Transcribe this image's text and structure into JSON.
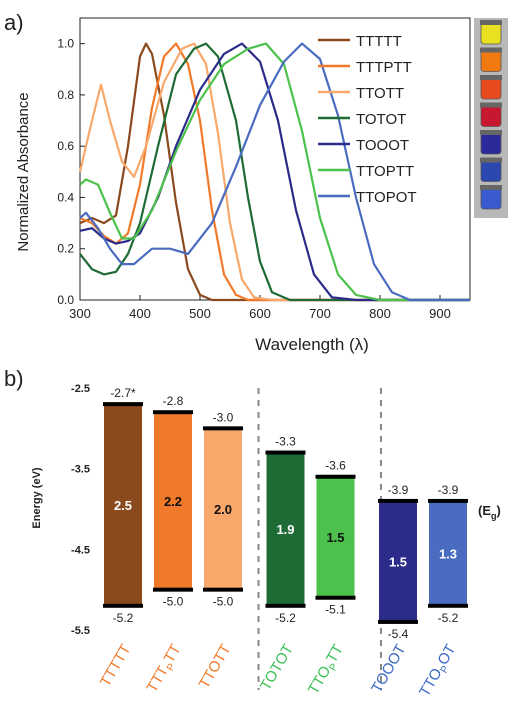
{
  "chart_data": [
    {
      "panel_label": "a)",
      "type": "line",
      "xlabel": "Wavelength (λ)",
      "ylabel": "Normalized Absorbance",
      "xlim": [
        300,
        950
      ],
      "ylim": [
        0,
        1.1
      ],
      "xticks": [
        "300",
        "400",
        "500",
        "600",
        "700",
        "800",
        "900"
      ],
      "yticks": [
        "0.0",
        "0.2",
        "0.4",
        "0.6",
        "0.8",
        "1.0"
      ],
      "legend_position": "top-right",
      "series": [
        {
          "name": "TTTTT",
          "color": "#8a4a1e",
          "points": [
            [
              300,
              0.3
            ],
            [
              320,
              0.32
            ],
            [
              340,
              0.3
            ],
            [
              360,
              0.33
            ],
            [
              380,
              0.6
            ],
            [
              400,
              0.95
            ],
            [
              410,
              1.0
            ],
            [
              420,
              0.96
            ],
            [
              440,
              0.72
            ],
            [
              460,
              0.38
            ],
            [
              480,
              0.12
            ],
            [
              500,
              0.02
            ],
            [
              520,
              0.0
            ],
            [
              950,
              0.0
            ]
          ]
        },
        {
          "name": "TTTPTT",
          "color": "#f07a2a",
          "points": [
            [
              300,
              0.32
            ],
            [
              320,
              0.3
            ],
            [
              340,
              0.25
            ],
            [
              360,
              0.22
            ],
            [
              380,
              0.26
            ],
            [
              400,
              0.45
            ],
            [
              420,
              0.75
            ],
            [
              440,
              0.95
            ],
            [
              460,
              1.0
            ],
            [
              480,
              0.92
            ],
            [
              500,
              0.7
            ],
            [
              520,
              0.35
            ],
            [
              540,
              0.1
            ],
            [
              560,
              0.02
            ],
            [
              580,
              0.0
            ],
            [
              950,
              0.0
            ]
          ]
        },
        {
          "name": "TTOTT",
          "color": "#f8a86a",
          "points": [
            [
              300,
              0.5
            ],
            [
              320,
              0.7
            ],
            [
              335,
              0.84
            ],
            [
              350,
              0.7
            ],
            [
              370,
              0.54
            ],
            [
              390,
              0.48
            ],
            [
              410,
              0.6
            ],
            [
              440,
              0.85
            ],
            [
              470,
              0.98
            ],
            [
              490,
              1.0
            ],
            [
              510,
              0.92
            ],
            [
              530,
              0.65
            ],
            [
              550,
              0.3
            ],
            [
              570,
              0.08
            ],
            [
              590,
              0.01
            ],
            [
              620,
              0.0
            ],
            [
              950,
              0.0
            ]
          ]
        },
        {
          "name": "TOTOT",
          "color": "#1f6b36",
          "points": [
            [
              300,
              0.18
            ],
            [
              320,
              0.12
            ],
            [
              340,
              0.1
            ],
            [
              360,
              0.11
            ],
            [
              380,
              0.18
            ],
            [
              400,
              0.3
            ],
            [
              430,
              0.6
            ],
            [
              460,
              0.88
            ],
            [
              490,
              0.98
            ],
            [
              510,
              1.0
            ],
            [
              530,
              0.95
            ],
            [
              560,
              0.7
            ],
            [
              580,
              0.4
            ],
            [
              600,
              0.15
            ],
            [
              620,
              0.03
            ],
            [
              650,
              0.0
            ],
            [
              950,
              0.0
            ]
          ]
        },
        {
          "name": "TOOOT",
          "color": "#2b2b8a",
          "points": [
            [
              300,
              0.27
            ],
            [
              320,
              0.28
            ],
            [
              340,
              0.24
            ],
            [
              360,
              0.22
            ],
            [
              380,
              0.23
            ],
            [
              400,
              0.26
            ],
            [
              430,
              0.4
            ],
            [
              460,
              0.6
            ],
            [
              500,
              0.82
            ],
            [
              540,
              0.96
            ],
            [
              570,
              1.0
            ],
            [
              600,
              0.93
            ],
            [
              630,
              0.7
            ],
            [
              660,
              0.35
            ],
            [
              690,
              0.1
            ],
            [
              720,
              0.01
            ],
            [
              760,
              0.0
            ],
            [
              950,
              0.0
            ]
          ]
        },
        {
          "name": "TTOPTT",
          "color": "#4cc24c",
          "points": [
            [
              300,
              0.45
            ],
            [
              310,
              0.47
            ],
            [
              330,
              0.45
            ],
            [
              350,
              0.34
            ],
            [
              370,
              0.24
            ],
            [
              390,
              0.24
            ],
            [
              420,
              0.35
            ],
            [
              460,
              0.58
            ],
            [
              500,
              0.78
            ],
            [
              540,
              0.92
            ],
            [
              580,
              0.98
            ],
            [
              610,
              1.0
            ],
            [
              640,
              0.92
            ],
            [
              670,
              0.66
            ],
            [
              700,
              0.32
            ],
            [
              730,
              0.1
            ],
            [
              760,
              0.02
            ],
            [
              800,
              0.0
            ],
            [
              950,
              0.0
            ]
          ]
        },
        {
          "name": "TTOPOT",
          "color": "#4a6cc0",
          "points": [
            [
              300,
              0.32
            ],
            [
              310,
              0.34
            ],
            [
              330,
              0.28
            ],
            [
              350,
              0.2
            ],
            [
              370,
              0.14
            ],
            [
              390,
              0.14
            ],
            [
              420,
              0.2
            ],
            [
              450,
              0.2
            ],
            [
              480,
              0.18
            ],
            [
              520,
              0.3
            ],
            [
              560,
              0.52
            ],
            [
              600,
              0.76
            ],
            [
              640,
              0.93
            ],
            [
              670,
              1.0
            ],
            [
              700,
              0.94
            ],
            [
              730,
              0.72
            ],
            [
              760,
              0.4
            ],
            [
              790,
              0.14
            ],
            [
              820,
              0.03
            ],
            [
              850,
              0.0
            ],
            [
              950,
              0.0
            ]
          ]
        }
      ]
    },
    {
      "panel_label": "b)",
      "type": "bar",
      "ylabel": "Energy (eV)",
      "ylim": [
        -5.5,
        -2.5
      ],
      "yticks": [
        "-2.5",
        "-3.5",
        "-4.5",
        "-5.5"
      ],
      "gap_legend": "(E",
      "gap_legend_sub": "g",
      "gap_legend_close": ")",
      "bars": [
        {
          "name": "TTTTT",
          "label_main": "TTTTT",
          "label_sub": "",
          "label_end": "",
          "lumo": -2.7,
          "homo": -5.2,
          "lumo_label": "-2.7*",
          "homo_label": "-5.2",
          "gap": "2.5",
          "color": "#8a4a1e",
          "label_color": "#f07a2a",
          "gap_color": "#ffffff",
          "x": 0
        },
        {
          "name": "TTTPTT",
          "label_main": "TTT",
          "label_sub": "P",
          "label_end": "TT",
          "lumo": -2.8,
          "homo": -5.0,
          "lumo_label": "-2.8",
          "homo_label": "-5.0",
          "gap": "2.2",
          "color": "#f07a2a",
          "label_color": "#f07a2a",
          "gap_color": "#111111",
          "x": 1
        },
        {
          "name": "TTOTT",
          "label_main": "TTOTT",
          "label_sub": "",
          "label_end": "",
          "lumo": -3.0,
          "homo": -5.0,
          "lumo_label": "-3.0",
          "homo_label": "-5.0",
          "gap": "2.0",
          "color": "#f8a86a",
          "label_color": "#f07a2a",
          "gap_color": "#111111",
          "x": 2
        },
        {
          "name": "TOTOT",
          "label_main": "TOTOT",
          "label_sub": "",
          "label_end": "",
          "lumo": -3.3,
          "homo": -5.2,
          "lumo_label": "-3.3",
          "homo_label": "-5.2",
          "gap": "1.9",
          "color": "#1f6b36",
          "label_color": "#3cbf55",
          "gap_color": "#ffffff",
          "x": 3.25
        },
        {
          "name": "TTOPTT",
          "label_main": "TTO",
          "label_sub": "P",
          "label_end": "TT",
          "lumo": -3.6,
          "homo": -5.1,
          "lumo_label": "-3.6",
          "homo_label": "-5.1",
          "gap": "1.5",
          "color": "#4cc24c",
          "label_color": "#3cbf55",
          "gap_color": "#111111",
          "x": 4.25
        },
        {
          "name": "TOOOT",
          "label_main": "TOOOT",
          "label_sub": "",
          "label_end": "",
          "lumo": -3.9,
          "homo": -5.4,
          "lumo_label": "-3.9",
          "homo_label": "-5.4",
          "gap": "1.5",
          "color": "#2b2b8a",
          "label_color": "#3a6ac4",
          "gap_color": "#ffffff",
          "x": 5.5
        },
        {
          "name": "TTOPOT",
          "label_main": "TTO",
          "label_sub": "P",
          "label_end": "OT",
          "lumo": -3.9,
          "homo": -5.2,
          "lumo_label": "-3.9",
          "homo_label": "-5.2",
          "gap": "1.3",
          "color": "#4a6cc0",
          "label_color": "#3a6ac4",
          "gap_color": "#ffffff",
          "x": 6.5
        }
      ]
    }
  ],
  "vial_colors": [
    "#e8e020",
    "#f07a10",
    "#e84a20",
    "#c81830",
    "#2a2a9a",
    "#2a48b0",
    "#3a5ad0"
  ]
}
